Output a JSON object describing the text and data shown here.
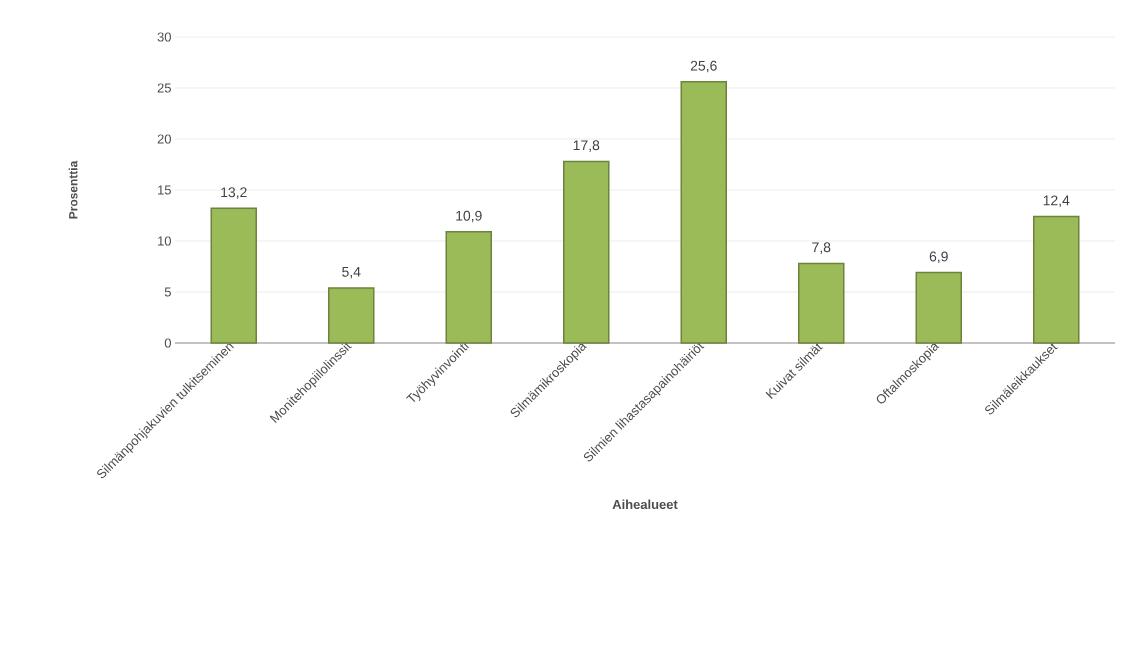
{
  "chart_data": {
    "type": "bar",
    "xlabel": "Aihealueet",
    "ylabel": "Prosenttia",
    "categories": [
      "Silmänpohjakuvien tulkitseminen",
      "Monitehopiilolinssit",
      "Työhyvinvointi",
      "Silmämikroskopia",
      "Silmien lihastasapainohäiriöt",
      "Kuivat silmät",
      "Oftalmoskopia",
      "Silmäleikkaukset"
    ],
    "values": [
      13.2,
      5.4,
      10.9,
      17.8,
      25.6,
      7.8,
      6.9,
      12.4
    ],
    "value_labels": [
      "13,2",
      "5,4",
      "10,9",
      "17,8",
      "25,6",
      "7,8",
      "6,9",
      "12,4"
    ],
    "color": "#9bbb59",
    "ylim": [
      0,
      30
    ],
    "yticks": [
      0,
      5,
      10,
      15,
      20,
      25,
      30
    ],
    "grid": "y"
  }
}
